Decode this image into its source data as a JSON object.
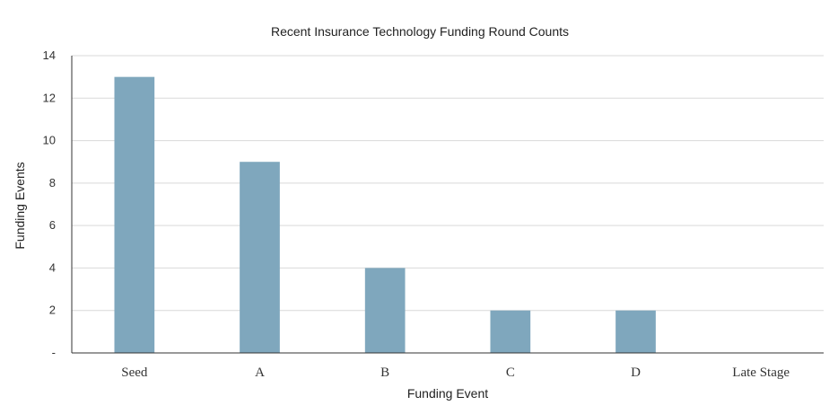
{
  "chart_data": {
    "type": "bar",
    "title": "Recent Insurance Technology Funding Round Counts",
    "xlabel": "Funding Event",
    "ylabel": "Funding Events",
    "categories": [
      "Seed",
      "A",
      "B",
      "C",
      "D",
      "Late Stage"
    ],
    "values": [
      13,
      9,
      4,
      2,
      2,
      0
    ],
    "ylim": [
      0,
      14
    ],
    "yticks": [
      0,
      2,
      4,
      6,
      8,
      10,
      12,
      14
    ],
    "ytick_labels": [
      "-",
      "2",
      "4",
      "6",
      "8",
      "10",
      "12",
      "14"
    ],
    "grid": true,
    "bar_color": "#7fa7bd"
  }
}
